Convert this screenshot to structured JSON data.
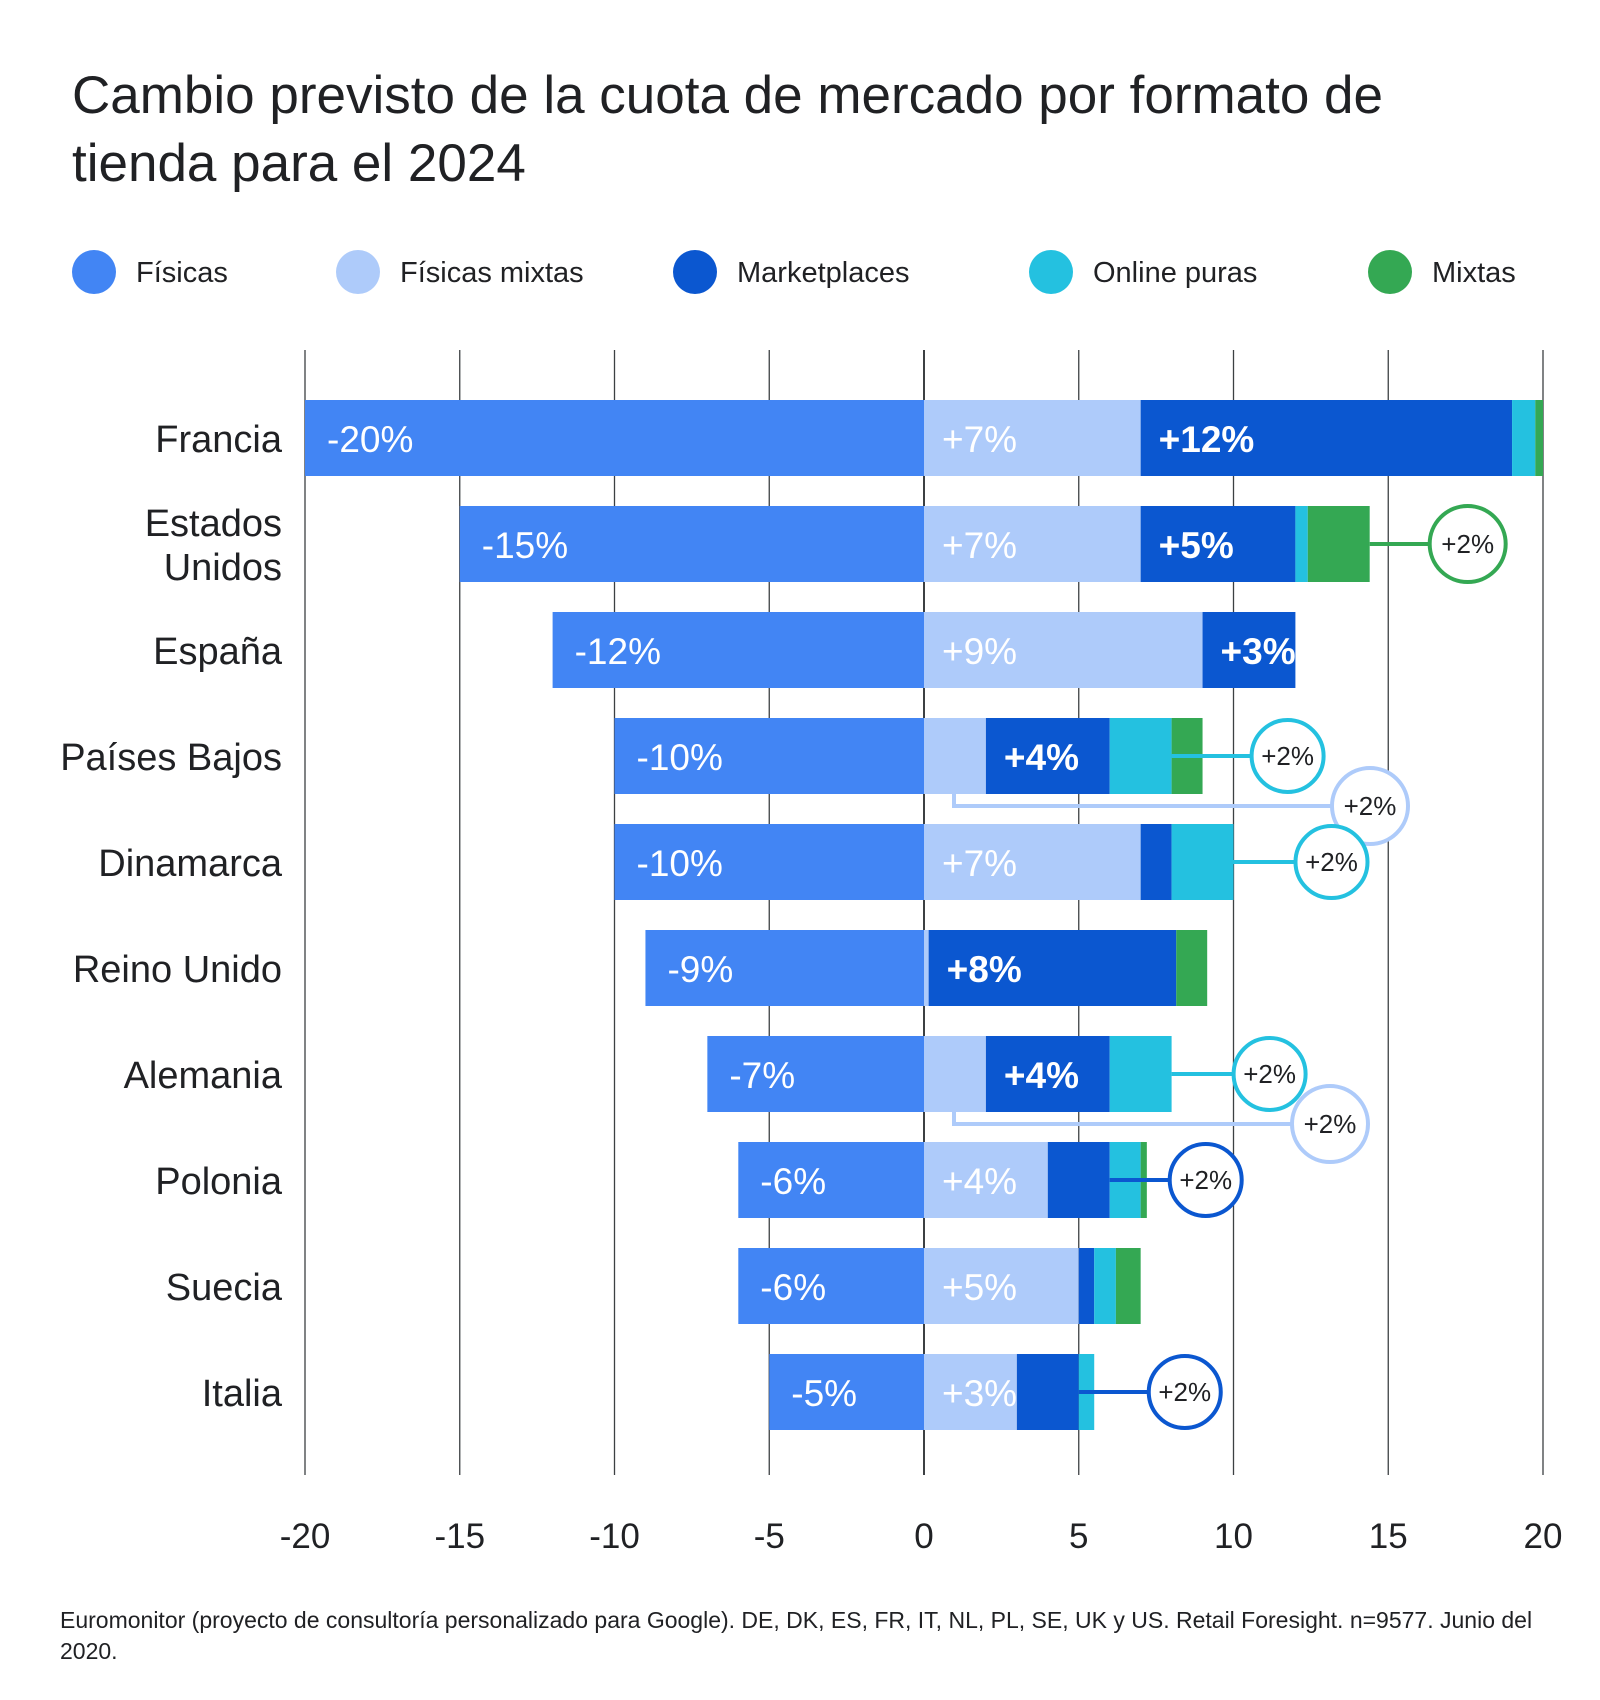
{
  "title": "Cambio previsto de la cuota de mercado por formato de tienda para el 2024",
  "colors": {
    "fisicas": "#4285F4",
    "fisicas_mixtas": "#AECBFA",
    "marketplaces": "#0B57D0",
    "online_puras": "#24C1E0",
    "mixtas": "#34A853",
    "grid": "#3c4043"
  },
  "source": "Euromonitor (proyecto de consultoría personalizado para Google). DE, DK, ES, FR, IT, NL, PL, SE, UK y US. Retail Foresight. n=9577. Junio del 2020.",
  "chart_data": {
    "type": "bar",
    "orientation": "horizontal",
    "stacked": true,
    "xlim": [
      -20,
      20
    ],
    "xticks": [
      "-20",
      "-15",
      "-10",
      "-5",
      "0",
      "5",
      "10",
      "15",
      "20"
    ],
    "xtick_values": [
      -20,
      -15,
      -10,
      -5,
      0,
      5,
      10,
      15,
      20
    ],
    "grid": true,
    "legend_position": "top",
    "legend": [
      {
        "key": "fisicas",
        "label": "Físicas"
      },
      {
        "key": "fisicas_mixtas",
        "label": "Físicas mixtas"
      },
      {
        "key": "marketplaces",
        "label": "Marketplaces"
      },
      {
        "key": "online_puras",
        "label": "Online puras"
      },
      {
        "key": "mixtas",
        "label": "Mixtas"
      }
    ],
    "categories": [
      [
        "Francia"
      ],
      [
        "Estados",
        "Unidos"
      ],
      [
        "España"
      ],
      [
        "Países Bajos"
      ],
      [
        "Dinamarca"
      ],
      [
        "Reino Unido"
      ],
      [
        "Alemania"
      ],
      [
        "Polonia"
      ],
      [
        "Suecia"
      ],
      [
        "Italia"
      ]
    ],
    "series": [
      {
        "name": "Físicas",
        "key": "fisicas",
        "values": [
          -20,
          -15,
          -12,
          -10,
          -10,
          -9,
          -7,
          -6,
          -6,
          -5
        ],
        "labels": [
          "-20%",
          "-15%",
          "-12%",
          "-10%",
          "-10%",
          "-9%",
          "-7%",
          "-6%",
          "-6%",
          "-5%"
        ]
      },
      {
        "name": "Físicas mixtas",
        "key": "fisicas_mixtas",
        "values": [
          7,
          7,
          9,
          2,
          7,
          0.15,
          2,
          4,
          5,
          3
        ],
        "labels": [
          "+7%",
          "+7%",
          "+9%",
          "",
          "+7%",
          "",
          "",
          "+4%",
          "+5%",
          "+3%"
        ]
      },
      {
        "name": "Marketplaces",
        "key": "marketplaces",
        "values": [
          12,
          5,
          3,
          4,
          1,
          8,
          4,
          2,
          0.5,
          2
        ],
        "labels": [
          "+12%",
          "+5%",
          "+3%",
          "+4%",
          "",
          "+8%",
          "+4%",
          "",
          "",
          ""
        ]
      },
      {
        "name": "Online puras",
        "key": "online_puras",
        "values": [
          0.75,
          0.4,
          0,
          2,
          2,
          0,
          2,
          1,
          0.7,
          0.5
        ],
        "labels": [
          "",
          "",
          "",
          "",
          "",
          "",
          "",
          "",
          "",
          ""
        ]
      },
      {
        "name": "Mixtas",
        "key": "mixtas",
        "values": [
          0.25,
          2,
          0,
          1,
          0,
          1,
          0,
          0.2,
          0.8,
          0
        ],
        "labels": [
          "",
          "",
          "",
          "",
          "",
          "",
          "",
          "",
          "",
          ""
        ]
      }
    ],
    "callouts": [
      {
        "row": 1,
        "series": "mixtas",
        "label": "+2%"
      },
      {
        "row": 3,
        "series": "online_puras",
        "label": "+2%"
      },
      {
        "row": 3,
        "series": "fisicas_mixtas",
        "label": "+2%"
      },
      {
        "row": 4,
        "series": "online_puras",
        "label": "+2%"
      },
      {
        "row": 6,
        "series": "online_puras",
        "label": "+2%"
      },
      {
        "row": 6,
        "series": "fisicas_mixtas",
        "label": "+2%"
      },
      {
        "row": 7,
        "series": "marketplaces",
        "label": "+2%"
      },
      {
        "row": 9,
        "series": "marketplaces",
        "label": "+2%"
      }
    ]
  }
}
